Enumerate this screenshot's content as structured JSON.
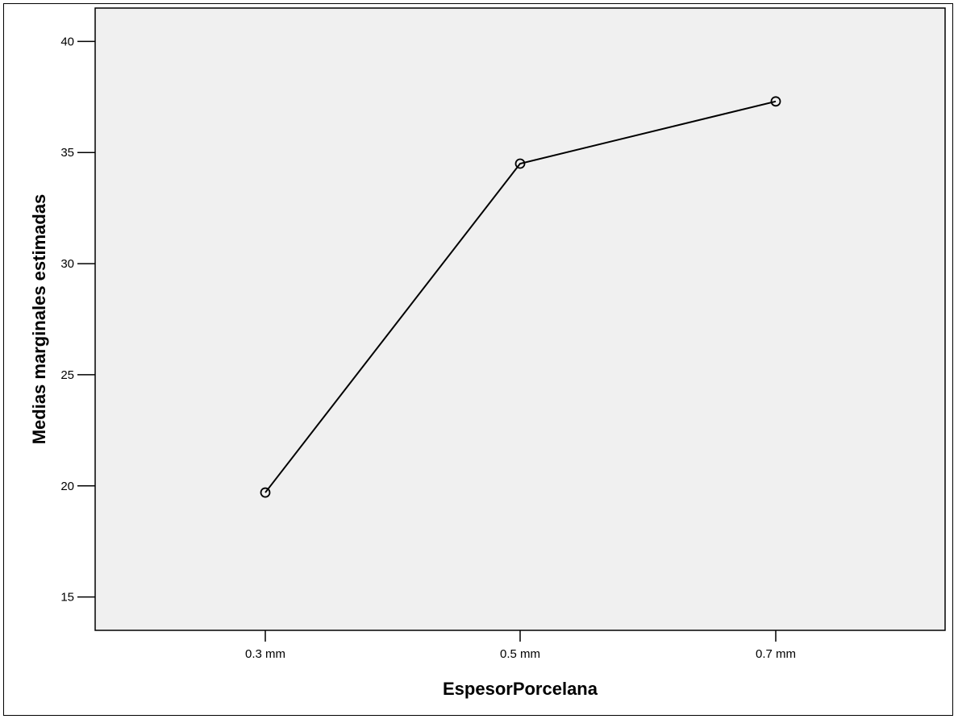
{
  "chart_data": {
    "type": "line",
    "title": "",
    "xlabel": "EspesorPorcelana",
    "ylabel": "Medias marginales estimadas",
    "categories": [
      "0.3 mm",
      "0.5 mm",
      "0.7 mm"
    ],
    "series": [
      {
        "values": [
          19.7,
          34.5,
          37.3
        ]
      }
    ],
    "ylim": [
      13.5,
      41.5
    ],
    "yticks": [
      15,
      20,
      25,
      30,
      35,
      40
    ],
    "grid": false,
    "legend": "none",
    "marker": "open-circle",
    "colors": {
      "plot_background": "#f0f0f0",
      "line": "#000000",
      "axis": "#000000"
    }
  }
}
